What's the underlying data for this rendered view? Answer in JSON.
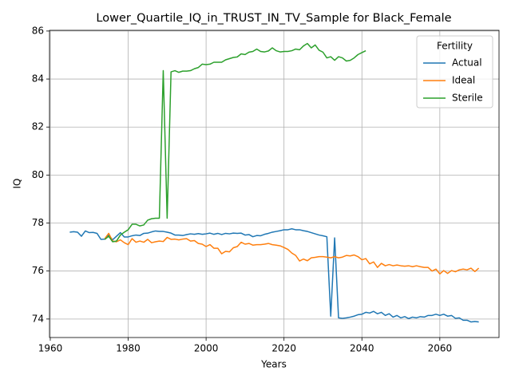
{
  "chart_data": {
    "type": "line",
    "title": "Lower_Quartile_IQ_in_TRUST_IN_TV_Sample for Black_Female",
    "x_label": "Years",
    "y_label": "IQ",
    "x": [
      1965,
      1966,
      1967,
      1968,
      1969,
      1970,
      1971,
      1972,
      1973,
      1974,
      1975,
      1976,
      1977,
      1978,
      1979,
      1980,
      1981,
      1982,
      1983,
      1984,
      1985,
      1986,
      1987,
      1988,
      1989,
      1990,
      1991,
      1992,
      1993,
      1994,
      1995,
      1996,
      1997,
      1998,
      1999,
      2000,
      2001,
      2002,
      2003,
      2004,
      2005,
      2006,
      2007,
      2008,
      2009,
      2010,
      2011,
      2012,
      2013,
      2014,
      2015,
      2016,
      2017,
      2018,
      2019,
      2020,
      2021,
      2022,
      2023,
      2024,
      2025,
      2026,
      2027,
      2028,
      2029,
      2030,
      2031,
      2032,
      2033,
      2034,
      2035,
      2036,
      2037,
      2038,
      2039,
      2040,
      2041,
      2042,
      2043,
      2044,
      2045,
      2046,
      2047,
      2048,
      2049,
      2050,
      2051,
      2052,
      2053,
      2054,
      2055,
      2056,
      2057,
      2058,
      2059,
      2060,
      2061,
      2062,
      2063,
      2064,
      2065,
      2066,
      2067,
      2068,
      2069,
      2070
    ],
    "series": [
      {
        "name": "Actual",
        "color": "#1f77b4",
        "values": [
          77.62,
          77.64,
          77.62,
          77.45,
          77.67,
          77.6,
          77.61,
          77.57,
          77.32,
          77.33,
          77.5,
          77.3,
          77.45,
          77.6,
          77.42,
          77.42,
          77.47,
          77.5,
          77.48,
          77.57,
          77.58,
          77.63,
          77.67,
          77.65,
          77.65,
          77.62,
          77.58,
          77.5,
          77.5,
          77.48,
          77.52,
          77.55,
          77.53,
          77.56,
          77.53,
          77.55,
          77.58,
          77.53,
          77.57,
          77.52,
          77.57,
          77.55,
          77.58,
          77.57,
          77.58,
          77.5,
          77.52,
          77.43,
          77.48,
          77.47,
          77.53,
          77.57,
          77.62,
          77.65,
          77.68,
          77.72,
          77.72,
          77.76,
          77.72,
          77.72,
          77.68,
          77.65,
          77.6,
          77.55,
          77.5,
          77.47,
          77.43,
          74.12,
          77.38,
          74.05,
          74.03,
          74.05,
          74.08,
          74.12,
          74.18,
          74.2,
          74.28,
          74.25,
          74.32,
          74.22,
          74.28,
          74.15,
          74.22,
          74.08,
          74.15,
          74.05,
          74.1,
          74.02,
          74.08,
          74.05,
          74.1,
          74.08,
          74.15,
          74.15,
          74.2,
          74.15,
          74.2,
          74.12,
          74.15,
          74.03,
          74.05,
          73.95,
          73.95,
          73.88,
          73.9,
          73.88
        ]
      },
      {
        "name": "Ideal",
        "color": "#ff7f0e",
        "values": [
          null,
          null,
          null,
          null,
          null,
          null,
          null,
          null,
          null,
          77.35,
          77.57,
          77.25,
          77.22,
          77.3,
          77.18,
          77.1,
          77.35,
          77.2,
          77.25,
          77.2,
          77.32,
          77.18,
          77.22,
          77.25,
          77.23,
          77.4,
          77.32,
          77.33,
          77.3,
          77.33,
          77.35,
          77.25,
          77.27,
          77.15,
          77.12,
          77.02,
          77.1,
          76.95,
          76.95,
          76.72,
          76.82,
          76.8,
          76.97,
          77.02,
          77.2,
          77.12,
          77.15,
          77.08,
          77.1,
          77.1,
          77.12,
          77.15,
          77.1,
          77.08,
          77.05,
          76.98,
          76.9,
          76.75,
          76.65,
          76.42,
          76.5,
          76.43,
          76.55,
          76.57,
          76.6,
          76.6,
          76.58,
          76.55,
          76.6,
          76.55,
          76.58,
          76.65,
          76.63,
          76.67,
          76.6,
          76.47,
          76.52,
          76.3,
          76.38,
          76.15,
          76.32,
          76.22,
          76.27,
          76.22,
          76.25,
          76.22,
          76.2,
          76.22,
          76.18,
          76.22,
          76.18,
          76.15,
          76.15,
          76.0,
          76.08,
          75.88,
          76.02,
          75.9,
          76.02,
          75.97,
          76.05,
          76.08,
          76.05,
          76.12,
          75.98,
          76.12
        ]
      },
      {
        "name": "Sterile",
        "color": "#2ca02c",
        "values": [
          null,
          null,
          null,
          null,
          null,
          null,
          null,
          null,
          null,
          77.32,
          77.45,
          77.22,
          77.25,
          77.5,
          77.62,
          77.72,
          77.95,
          77.95,
          77.88,
          77.92,
          78.12,
          78.18,
          78.2,
          78.2,
          84.35,
          78.2,
          84.3,
          84.35,
          84.28,
          84.33,
          84.33,
          84.35,
          84.43,
          84.48,
          84.62,
          84.6,
          84.62,
          84.7,
          84.7,
          84.7,
          84.8,
          84.85,
          84.9,
          84.92,
          85.05,
          85.02,
          85.12,
          85.15,
          85.25,
          85.15,
          85.13,
          85.17,
          85.3,
          85.18,
          85.13,
          85.15,
          85.15,
          85.18,
          85.25,
          85.22,
          85.38,
          85.48,
          85.3,
          85.42,
          85.2,
          85.12,
          84.88,
          84.93,
          84.78,
          84.93,
          84.88,
          84.75,
          84.78,
          84.88,
          85.02,
          85.1,
          85.18,
          null,
          null,
          null,
          null,
          null,
          null,
          null,
          null,
          null,
          null,
          null,
          null,
          null,
          null,
          null,
          null,
          null,
          null,
          null,
          null,
          null,
          null,
          null,
          null,
          null,
          null,
          null,
          null,
          null
        ]
      }
    ],
    "xlim": [
      1959.8,
      2075.2
    ],
    "ylim": [
      73.23,
      86.03
    ],
    "xticks": [
      1960,
      1980,
      2000,
      2020,
      2040,
      2060
    ],
    "yticks": [
      74,
      76,
      78,
      80,
      82,
      84,
      86
    ],
    "grid": true,
    "legend_title": "Fertility",
    "legend_position": "upper right"
  }
}
